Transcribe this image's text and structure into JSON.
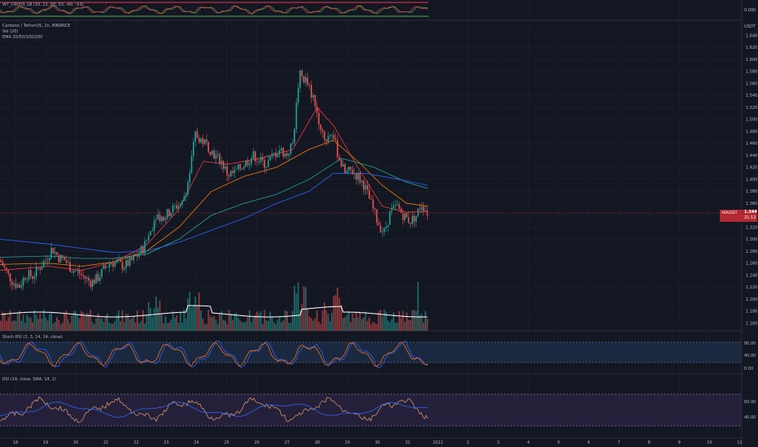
{
  "indicators": {
    "wt_label": "WT_CROSS_LB (10, 21, 60, 53, -60, -53)",
    "pair_label": "Cardano / TetherUS, 1h, BINANCE",
    "vol_label": "Vol (20)",
    "ema_label": "EMA 20/50/100/200",
    "stoch_label": "Stoch RSI (3, 3, 14, 14, close)",
    "rsi_label": "RSI (14, close, SMA, 14, 2)"
  },
  "header": {
    "currency": "USDT",
    "wt_zero": "0.000"
  },
  "last_price": {
    "symbol": "ADAUSDT",
    "value": "1.344",
    "countdown": "21:12"
  },
  "colors": {
    "background": "#131722",
    "up": "#26a69a",
    "down": "#ef5350",
    "ema20": "#f23645",
    "ema50": "#f57c00",
    "ema100": "#26a69a",
    "ema200": "#2962ff",
    "stoch_k": "#2962ff",
    "stoch_d": "#ff6d00",
    "rsi": "#e0a070",
    "rsi_ma": "#2962ff"
  },
  "chart_data": {
    "type": "candlestick",
    "title": "Cardano / TetherUS, 1h, BINANCE",
    "x_tick_labels": [
      "18",
      "19",
      "20",
      "21",
      "22",
      "23",
      "24",
      "25",
      "26",
      "27",
      "28",
      "29",
      "30",
      "31",
      "2022",
      "2",
      "3",
      "4",
      "5",
      "6",
      "7",
      "8",
      "9",
      "10",
      "11"
    ],
    "y_tick_labels": [
      "1.160",
      "1.180",
      "1.200",
      "1.220",
      "1.240",
      "1.260",
      "1.280",
      "1.300",
      "1.320",
      "1.340",
      "1.360",
      "1.380",
      "1.400",
      "1.420",
      "1.440",
      "1.460",
      "1.480",
      "1.500",
      "1.520",
      "1.540",
      "1.560",
      "1.580",
      "1.600",
      "1.620",
      "1.640"
    ],
    "ylim": [
      1.15,
      1.645
    ],
    "stoch_ticks": [
      "80.00",
      "40.00",
      "0.00"
    ],
    "rsi_ticks": [
      "60.00",
      "40.00"
    ],
    "close_path": [
      [
        0,
        1.265
      ],
      [
        8,
        1.245
      ],
      [
        16,
        1.228
      ],
      [
        24,
        1.222
      ],
      [
        32,
        1.242
      ],
      [
        40,
        1.238
      ],
      [
        48,
        1.252
      ],
      [
        56,
        1.265
      ],
      [
        64,
        1.285
      ],
      [
        72,
        1.27
      ],
      [
        80,
        1.265
      ],
      [
        88,
        1.25
      ],
      [
        96,
        1.245
      ],
      [
        104,
        1.236
      ],
      [
        112,
        1.228
      ],
      [
        120,
        1.235
      ],
      [
        128,
        1.25
      ],
      [
        136,
        1.262
      ],
      [
        144,
        1.26
      ],
      [
        152,
        1.255
      ],
      [
        160,
        1.262
      ],
      [
        168,
        1.272
      ],
      [
        176,
        1.285
      ],
      [
        184,
        1.31
      ],
      [
        192,
        1.342
      ],
      [
        200,
        1.335
      ],
      [
        208,
        1.345
      ],
      [
        216,
        1.355
      ],
      [
        224,
        1.36
      ],
      [
        232,
        1.4
      ],
      [
        240,
        1.475
      ],
      [
        248,
        1.465
      ],
      [
        256,
        1.455
      ],
      [
        264,
        1.44
      ],
      [
        272,
        1.43
      ],
      [
        280,
        1.408
      ],
      [
        288,
        1.41
      ],
      [
        296,
        1.42
      ],
      [
        304,
        1.43
      ],
      [
        312,
        1.44
      ],
      [
        320,
        1.43
      ],
      [
        328,
        1.425
      ],
      [
        336,
        1.44
      ],
      [
        344,
        1.45
      ],
      [
        352,
        1.44
      ],
      [
        360,
        1.46
      ],
      [
        368,
        1.575
      ],
      [
        376,
        1.565
      ],
      [
        384,
        1.54
      ],
      [
        392,
        1.5
      ],
      [
        400,
        1.465
      ],
      [
        408,
        1.48
      ],
      [
        416,
        1.44
      ],
      [
        424,
        1.41
      ],
      [
        432,
        1.415
      ],
      [
        440,
        1.405
      ],
      [
        448,
        1.39
      ],
      [
        456,
        1.36
      ],
      [
        464,
        1.33
      ],
      [
        472,
        1.31
      ],
      [
        480,
        1.345
      ],
      [
        488,
        1.355
      ],
      [
        496,
        1.34
      ],
      [
        504,
        1.33
      ],
      [
        512,
        1.34
      ],
      [
        518,
        1.36
      ],
      [
        526,
        1.344
      ]
    ],
    "emas": [
      {
        "name": "EMA 20",
        "points": [
          [
            0,
            1.248
          ],
          [
            60,
            1.255
          ],
          [
            100,
            1.248
          ],
          [
            140,
            1.262
          ],
          [
            180,
            1.29
          ],
          [
            220,
            1.35
          ],
          [
            250,
            1.43
          ],
          [
            280,
            1.425
          ],
          [
            320,
            1.435
          ],
          [
            360,
            1.45
          ],
          [
            390,
            1.52
          ],
          [
            410,
            1.49
          ],
          [
            440,
            1.42
          ],
          [
            470,
            1.355
          ],
          [
            500,
            1.345
          ],
          [
            526,
            1.347
          ]
        ]
      },
      {
        "name": "EMA 50",
        "points": [
          [
            0,
            1.258
          ],
          [
            60,
            1.26
          ],
          [
            100,
            1.255
          ],
          [
            140,
            1.262
          ],
          [
            180,
            1.28
          ],
          [
            220,
            1.32
          ],
          [
            260,
            1.38
          ],
          [
            300,
            1.405
          ],
          [
            340,
            1.42
          ],
          [
            380,
            1.45
          ],
          [
            410,
            1.465
          ],
          [
            440,
            1.43
          ],
          [
            470,
            1.39
          ],
          [
            500,
            1.36
          ],
          [
            526,
            1.355
          ]
        ]
      },
      {
        "name": "EMA 100",
        "points": [
          [
            0,
            1.27
          ],
          [
            60,
            1.272
          ],
          [
            100,
            1.268
          ],
          [
            140,
            1.268
          ],
          [
            180,
            1.275
          ],
          [
            220,
            1.3
          ],
          [
            260,
            1.34
          ],
          [
            300,
            1.36
          ],
          [
            340,
            1.375
          ],
          [
            380,
            1.4
          ],
          [
            420,
            1.435
          ],
          [
            460,
            1.42
          ],
          [
            500,
            1.395
          ],
          [
            526,
            1.385
          ]
        ]
      },
      {
        "name": "EMA 200",
        "points": [
          [
            0,
            1.3
          ],
          [
            60,
            1.292
          ],
          [
            100,
            1.285
          ],
          [
            140,
            1.278
          ],
          [
            180,
            1.28
          ],
          [
            220,
            1.295
          ],
          [
            260,
            1.315
          ],
          [
            300,
            1.335
          ],
          [
            340,
            1.36
          ],
          [
            380,
            1.38
          ],
          [
            410,
            1.41
          ],
          [
            450,
            1.41
          ],
          [
            490,
            1.4
          ],
          [
            526,
            1.39
          ]
        ]
      }
    ]
  }
}
